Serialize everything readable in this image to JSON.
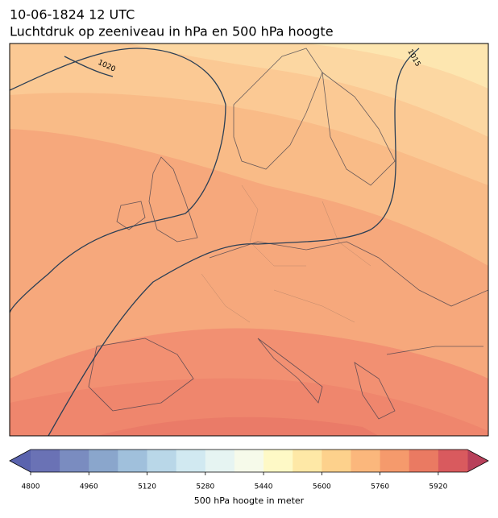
{
  "header": {
    "date": "10-06-1824 12 UTC",
    "title": "Luchtdruk op zeeniveau in hPa en 500 hPa hoogte"
  },
  "map": {
    "contour_labels": [
      "1020",
      "1015"
    ]
  },
  "colorbar": {
    "label": "500 hPa hoogte in meter",
    "range": [
      4800,
      6000
    ],
    "ticks": [
      4800,
      4960,
      5120,
      5280,
      5440,
      5600,
      5760,
      5920
    ],
    "under_color": "#5a63ae",
    "over_color": "#b8405a",
    "colors": [
      "#6a72b5",
      "#7a8cc0",
      "#8aa6cc",
      "#a0c0dc",
      "#b9d7e8",
      "#d1e9f1",
      "#e6f4f2",
      "#f6faea",
      "#fef9c6",
      "#fee8a6",
      "#fdd18c",
      "#fbb77c",
      "#f59a6c",
      "#ea7a62",
      "#d95a5e"
    ]
  }
}
